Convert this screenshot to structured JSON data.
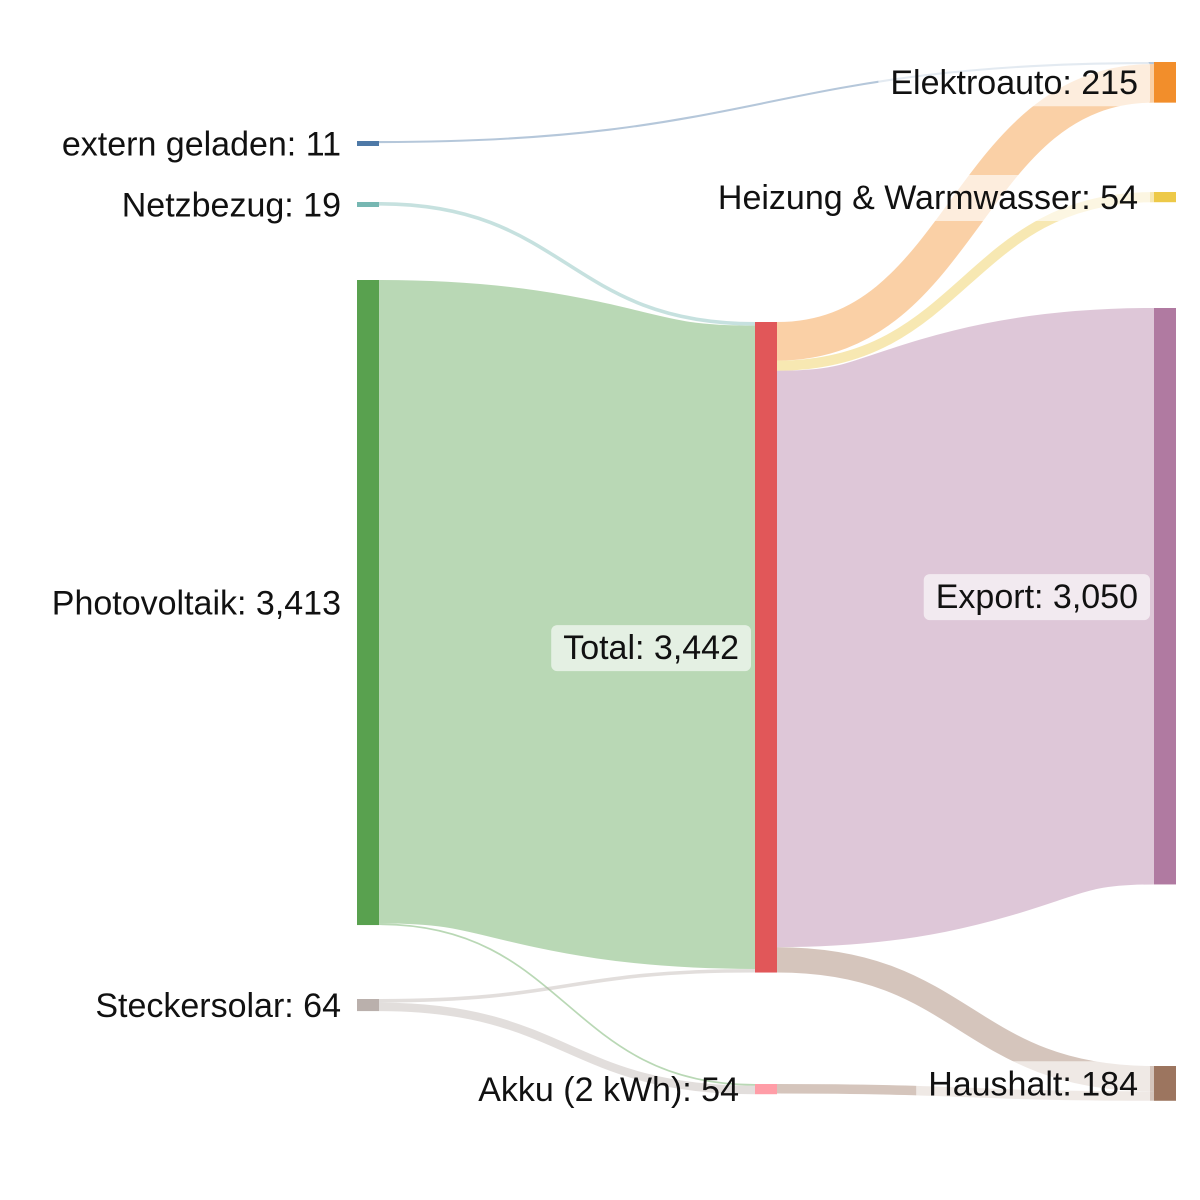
{
  "chart_data": {
    "type": "sankey",
    "nodes": [
      {
        "id": "extern",
        "label": "extern geladen: 11",
        "name": "extern geladen",
        "value": 11,
        "color": "#4e79a7"
      },
      {
        "id": "netz",
        "label": "Netzbezug: 19",
        "name": "Netzbezug",
        "value": 19,
        "color": "#76b7b2"
      },
      {
        "id": "pv",
        "label": "Photovoltaik: 3,413",
        "name": "Photovoltaik",
        "value": 3413,
        "color": "#59a14f"
      },
      {
        "id": "stecker",
        "label": "Steckersolar: 64",
        "name": "Steckersolar",
        "value": 64,
        "color": "#bab0ac"
      },
      {
        "id": "total",
        "label": "Total: 3,442",
        "name": "Total",
        "value": 3442,
        "color": "#e15759"
      },
      {
        "id": "akku",
        "label": "Akku (2 kWh): 54",
        "name": "Akku (2 kWh)",
        "value": 54,
        "color": "#ff9da7"
      },
      {
        "id": "auto",
        "label": "Elektroauto: 215",
        "name": "Elektroauto",
        "value": 215,
        "color": "#f28e2b"
      },
      {
        "id": "heizung",
        "label": "Heizung & Warmwasser: 54",
        "name": "Heizung & Warmwasser",
        "value": 54,
        "color": "#edc948"
      },
      {
        "id": "export",
        "label": "Export: 3,050",
        "name": "Export",
        "value": 3050,
        "color": "#b07aa1"
      },
      {
        "id": "haushalt",
        "label": "Haushalt: 184",
        "name": "Haushalt",
        "value": 184,
        "color": "#9c755f"
      }
    ],
    "links": [
      {
        "source": "extern",
        "target": "auto",
        "value": 11
      },
      {
        "source": "netz",
        "target": "total",
        "value": 19
      },
      {
        "source": "pv",
        "target": "total",
        "value": 3404
      },
      {
        "source": "pv",
        "target": "akku",
        "value": 9
      },
      {
        "source": "stecker",
        "target": "total",
        "value": 19
      },
      {
        "source": "stecker",
        "target": "akku",
        "value": 45
      },
      {
        "source": "total",
        "target": "auto",
        "value": 204
      },
      {
        "source": "total",
        "target": "heizung",
        "value": 54
      },
      {
        "source": "total",
        "target": "export",
        "value": 3050
      },
      {
        "source": "total",
        "target": "haushalt",
        "value": 134
      },
      {
        "source": "akku",
        "target": "haushalt",
        "value": 50
      }
    ]
  }
}
